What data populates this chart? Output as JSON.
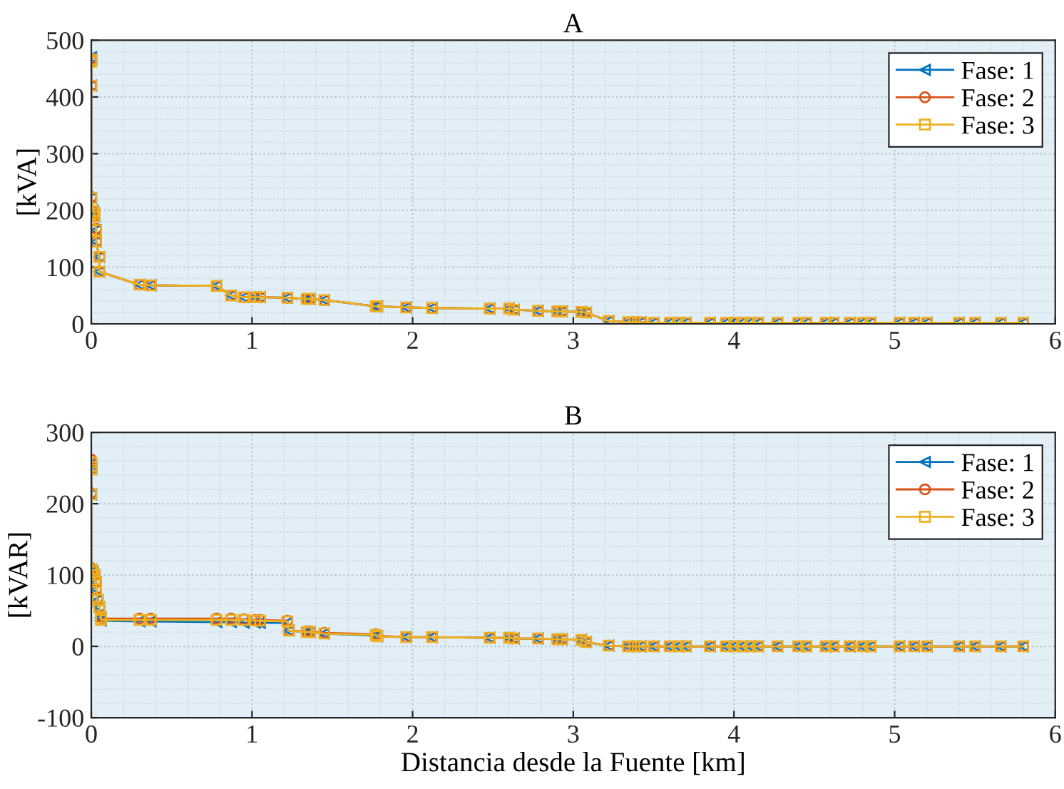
{
  "chart_data": [
    {
      "type": "line",
      "title": "A",
      "ylabel": "[kVA]",
      "xlim": [
        0,
        6
      ],
      "xticks": [
        0,
        1,
        2,
        3,
        4,
        5,
        6
      ],
      "ylim": [
        0,
        500
      ],
      "yticks": [
        0,
        100,
        200,
        300,
        400,
        500
      ],
      "grid": true,
      "legend": "top right",
      "x": [
        0,
        0,
        0,
        0,
        0.01,
        0.02,
        0.02,
        0.03,
        0.03,
        0.05,
        0.05,
        0.3,
        0.37,
        0.78,
        0.87,
        0.95,
        1.02,
        1.05,
        1.22,
        1.34,
        1.36,
        1.45,
        1.77,
        1.78,
        1.96,
        2.12,
        2.48,
        2.6,
        2.63,
        2.78,
        2.9,
        2.93,
        3.05,
        3.08,
        3.22,
        3.34,
        3.38,
        3.42,
        3.5,
        3.6,
        3.65,
        3.7,
        3.85,
        3.95,
        4.0,
        4.05,
        4.1,
        4.15,
        4.27,
        4.4,
        4.45,
        4.57,
        4.62,
        4.72,
        4.8,
        4.85,
        5.03,
        5.12,
        5.2,
        5.4,
        5.5,
        5.66,
        5.8
      ],
      "series": [
        {
          "name": "Fase: 1",
          "color": "#0072bd",
          "marker": "triangle",
          "values": [
            470,
            465,
            420,
            222,
            200,
            195,
            190,
            165,
            145,
            118,
            92,
            69,
            68,
            67,
            50,
            47,
            47,
            47,
            46,
            44,
            44,
            42,
            31,
            31,
            29,
            28,
            27,
            27,
            25,
            23,
            22,
            22,
            21,
            20,
            5,
            3,
            3,
            3,
            2,
            2,
            2,
            2,
            2,
            2,
            2,
            2,
            2,
            2,
            2,
            2,
            2,
            2,
            2,
            2,
            2,
            2,
            2,
            2,
            2,
            2,
            2,
            2,
            2
          ]
        },
        {
          "name": "Fase: 2",
          "color": "#d95319",
          "marker": "circle",
          "values": [
            468,
            463,
            420,
            224,
            198,
            195,
            190,
            168,
            145,
            118,
            92,
            69,
            68,
            67,
            50,
            47,
            47,
            47,
            46,
            44,
            44,
            42,
            31,
            31,
            29,
            28,
            27,
            27,
            25,
            23,
            22,
            22,
            21,
            20,
            5,
            3,
            3,
            3,
            2,
            2,
            2,
            2,
            2,
            2,
            2,
            2,
            2,
            2,
            2,
            2,
            2,
            2,
            2,
            2,
            2,
            2,
            2,
            2,
            2,
            2,
            2,
            2,
            2
          ]
        },
        {
          "name": "Fase: 3",
          "color": "#edb120",
          "marker": "square",
          "values": [
            466,
            462,
            420,
            222,
            199,
            195,
            190,
            165,
            145,
            118,
            92,
            69,
            68,
            67,
            50,
            47,
            47,
            47,
            46,
            44,
            44,
            42,
            31,
            31,
            29,
            28,
            27,
            27,
            25,
            23,
            22,
            22,
            21,
            20,
            5,
            3,
            3,
            3,
            2,
            2,
            2,
            2,
            2,
            2,
            2,
            2,
            2,
            2,
            2,
            2,
            2,
            2,
            2,
            2,
            2,
            2,
            2,
            2,
            2,
            2,
            2,
            2,
            2
          ]
        }
      ]
    },
    {
      "type": "line",
      "title": "B",
      "xlabel": "Distancia desde la Fuente [km]",
      "ylabel": "[kVAR]",
      "xlim": [
        0,
        6
      ],
      "xticks": [
        0,
        1,
        2,
        3,
        4,
        5,
        6
      ],
      "ylim": [
        -100,
        300
      ],
      "yticks": [
        -100,
        0,
        100,
        200,
        300
      ],
      "grid": true,
      "legend": "top right",
      "x": [
        0,
        0,
        0,
        0,
        0,
        0.01,
        0.02,
        0.03,
        0.03,
        0.04,
        0.05,
        0.06,
        0.06,
        0.3,
        0.37,
        0.78,
        0.87,
        0.95,
        1.02,
        1.05,
        1.22,
        1.23,
        1.34,
        1.36,
        1.45,
        1.77,
        1.78,
        1.96,
        2.12,
        2.48,
        2.6,
        2.63,
        2.78,
        2.9,
        2.93,
        3.05,
        3.08,
        3.22,
        3.34,
        3.38,
        3.42,
        3.5,
        3.6,
        3.65,
        3.7,
        3.85,
        3.95,
        4.0,
        4.05,
        4.1,
        4.15,
        4.27,
        4.4,
        4.45,
        4.57,
        4.62,
        4.72,
        4.8,
        4.85,
        5.03,
        5.12,
        5.2,
        5.4,
        5.5,
        5.66,
        5.8
      ],
      "series": [
        {
          "name": "Fase: 1",
          "color": "#0072bd",
          "marker": "triangle",
          "values": [
            255,
            250,
            250,
            213,
            108,
            105,
            100,
            90,
            80,
            65,
            55,
            40,
            36,
            35,
            35,
            34,
            34,
            33,
            33,
            33,
            33,
            22,
            20,
            20,
            18,
            15,
            14,
            13,
            13,
            12,
            12,
            11,
            11,
            10,
            10,
            9,
            6,
            1,
            0,
            0,
            0,
            0,
            0,
            0,
            0,
            0,
            0,
            0,
            0,
            0,
            0,
            0,
            0,
            0,
            0,
            0,
            0,
            0,
            0,
            0,
            0,
            0,
            0,
            0,
            0,
            0
          ]
        },
        {
          "name": "Fase: 2",
          "color": "#d95319",
          "marker": "circle",
          "values": [
            262,
            258,
            250,
            215,
            110,
            105,
            100,
            92,
            80,
            68,
            55,
            42,
            39,
            39,
            39,
            39,
            39,
            38,
            37,
            37,
            36,
            22,
            21,
            21,
            19,
            17,
            15,
            13,
            13,
            12,
            12,
            11,
            11,
            10,
            10,
            9,
            6,
            1,
            0,
            0,
            0,
            0,
            0,
            0,
            0,
            0,
            0,
            0,
            0,
            0,
            0,
            0,
            0,
            0,
            0,
            0,
            0,
            0,
            0,
            0,
            0,
            0,
            0,
            0,
            0,
            0
          ]
        },
        {
          "name": "Fase: 3",
          "color": "#edb120",
          "marker": "square",
          "values": [
            258,
            252,
            248,
            213,
            108,
            105,
            100,
            90,
            80,
            65,
            55,
            40,
            37,
            37,
            37,
            37,
            37,
            37,
            36,
            36,
            35,
            22,
            20,
            20,
            18,
            16,
            14,
            13,
            13,
            12,
            12,
            11,
            11,
            10,
            10,
            9,
            6,
            1,
            0,
            0,
            0,
            0,
            0,
            0,
            0,
            0,
            0,
            0,
            0,
            0,
            0,
            0,
            0,
            0,
            0,
            0,
            0,
            0,
            0,
            0,
            0,
            0,
            0,
            0,
            0,
            0
          ]
        }
      ]
    }
  ]
}
